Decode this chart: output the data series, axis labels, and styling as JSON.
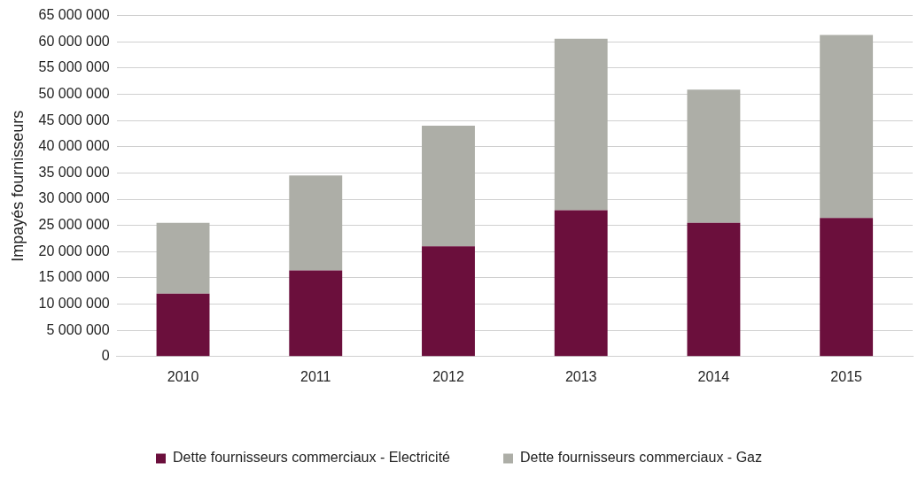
{
  "chart_data": {
    "type": "bar",
    "ylabel": "Impayés fournisseurs",
    "categories": [
      "2010",
      "2011",
      "2012",
      "2013",
      "2014",
      "2015"
    ],
    "series": [
      {
        "name": "Dette fournisseurs commerciaux - Electricité",
        "color": "#6b0f3c",
        "values": [
          12000000,
          16400000,
          21000000,
          27900000,
          25500000,
          26400000
        ]
      },
      {
        "name": "Dette fournisseurs commerciaux - Gaz",
        "color": "#adaea7",
        "values": [
          13500000,
          18100000,
          23000000,
          32700000,
          25400000,
          34900000
        ]
      }
    ],
    "stacked": true,
    "ylim": [
      0,
      65000000
    ],
    "yticks": [
      {
        "value": 0,
        "label": "0"
      },
      {
        "value": 5000000,
        "label": "5 000 000"
      },
      {
        "value": 10000000,
        "label": "10 000 000"
      },
      {
        "value": 15000000,
        "label": "15 000 000"
      },
      {
        "value": 20000000,
        "label": "20 000 000"
      },
      {
        "value": 25000000,
        "label": "25 000 000"
      },
      {
        "value": 30000000,
        "label": "30 000 000"
      },
      {
        "value": 35000000,
        "label": "35 000 000"
      },
      {
        "value": 40000000,
        "label": "40 000 000"
      },
      {
        "value": 45000000,
        "label": "45 000 000"
      },
      {
        "value": 50000000,
        "label": "50 000 000"
      },
      {
        "value": 55000000,
        "label": "55 000 000"
      },
      {
        "value": 60000000,
        "label": "60 000 000"
      },
      {
        "value": 65000000,
        "label": "65 000 000"
      }
    ],
    "grid": "y",
    "legend": "bottom"
  }
}
